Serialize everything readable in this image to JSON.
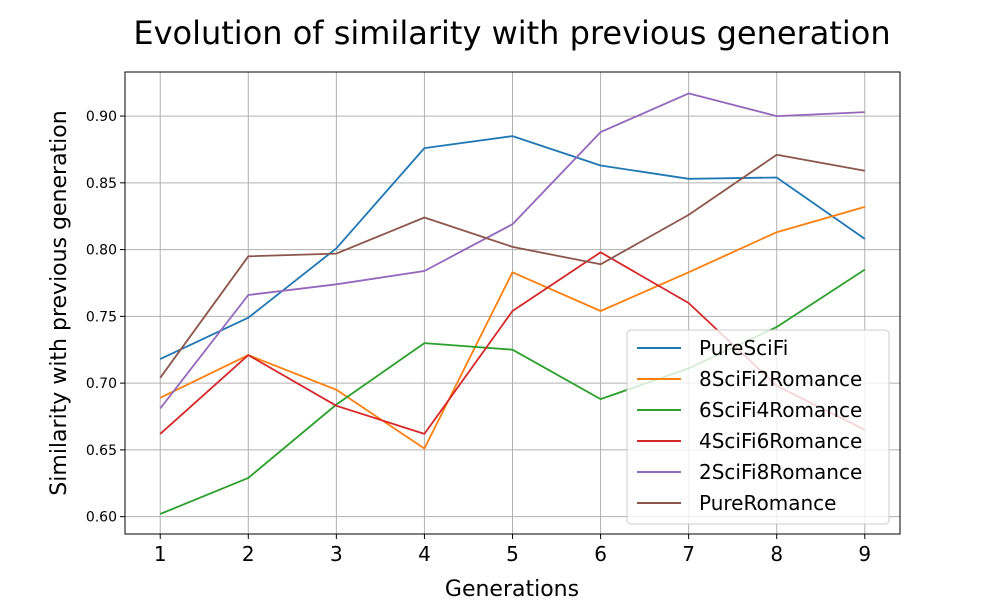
{
  "chart_data": {
    "type": "line",
    "title": "Evolution of similarity with previous generation",
    "xlabel": "Generations",
    "ylabel": "Similarity with previous generation",
    "x": [
      1,
      2,
      3,
      4,
      5,
      6,
      7,
      8,
      9
    ],
    "xticks": [
      "1",
      "2",
      "3",
      "4",
      "5",
      "6",
      "7",
      "8",
      "9"
    ],
    "yticks": [
      "0.60",
      "0.65",
      "0.70",
      "0.75",
      "0.80",
      "0.85",
      "0.90"
    ],
    "ytick_values": [
      0.6,
      0.65,
      0.7,
      0.75,
      0.8,
      0.85,
      0.9
    ],
    "xlim": [
      0.6,
      9.4
    ],
    "ylim": [
      0.587,
      0.933
    ],
    "grid": true,
    "legend_position": "lower-right",
    "series": [
      {
        "name": "PureSciFi",
        "color": "#1f77b4",
        "values": [
          0.718,
          0.749,
          0.801,
          0.876,
          0.885,
          0.863,
          0.853,
          0.854,
          0.808
        ]
      },
      {
        "name": "8SciFi2Romance",
        "color": "#ff7f0e",
        "values": [
          0.689,
          0.721,
          0.695,
          0.651,
          0.783,
          0.754,
          0.783,
          0.813,
          0.832
        ]
      },
      {
        "name": "6SciFi4Romance",
        "color": "#2ca02c",
        "values": [
          0.602,
          0.629,
          0.684,
          0.73,
          0.725,
          0.688,
          0.711,
          0.742,
          0.785
        ]
      },
      {
        "name": "4SciFi6Romance",
        "color": "#d62728",
        "values": [
          0.662,
          0.721,
          0.683,
          0.662,
          0.754,
          0.798,
          0.76,
          0.698,
          0.665
        ]
      },
      {
        "name": "2SciFi8Romance",
        "color": "#9467bd",
        "values": [
          0.681,
          0.766,
          0.774,
          0.784,
          0.819,
          0.888,
          0.917,
          0.9,
          0.903
        ]
      },
      {
        "name": "PureRomance",
        "color": "#8c564b",
        "values": [
          0.704,
          0.795,
          0.797,
          0.824,
          0.802,
          0.789,
          0.826,
          0.871,
          0.859
        ]
      }
    ]
  }
}
